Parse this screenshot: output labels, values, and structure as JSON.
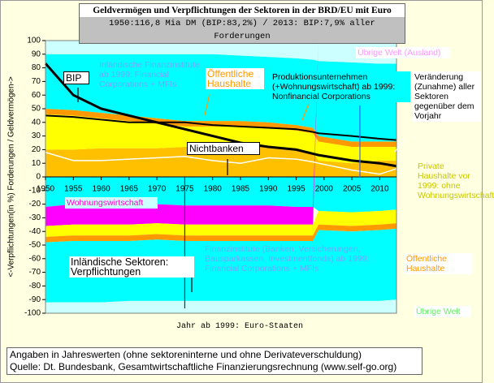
{
  "chart_data": {
    "type": "area",
    "title": "Geldvermögen und Verpflichtungen der Sektoren in der BRD/EU mit Euro",
    "subtitle": "1950:116,8 Mia DM (BIP:83,2%) / 2013: BIP:7,9% aller Forderungen",
    "y_label": "<-Verpflichtungen(in %) Forderungen / Geldvermögen->",
    "x_label": "Jahr ab 1999: Euro-Staaten",
    "notes": [
      "Angaben in Jahreswerten (ohne sektoreninterne und ohne Derivateverschuldung)",
      "Quelle: Dt. Bundesbank, Gesamtwirtschaftliche Finanzierungsrechnung (www.self-go.org)"
    ],
    "annotations": [
      "Inländische Sektoren: Verpflichtungen"
    ],
    "x": [
      1950,
      1955,
      1960,
      1965,
      1970,
      1975,
      1980,
      1985,
      1990,
      1995,
      1998,
      1999,
      2005,
      2010,
      2013
    ],
    "xlim": [
      1950,
      2013
    ],
    "xticks": [
      1950,
      1955,
      1960,
      1965,
      1970,
      1975,
      1980,
      1985,
      1990,
      1995,
      2000,
      2005,
      2010
    ],
    "ylim": [
      -100,
      100
    ],
    "yticks": [
      -100,
      -90,
      -80,
      -70,
      -60,
      -50,
      -40,
      -30,
      -20,
      -10,
      0,
      10,
      20,
      30,
      40,
      50,
      60,
      70,
      80,
      90,
      100
    ],
    "series": [
      {
        "name": "Private Haushalte vor 1999: ohne Wohnungswirtschaft",
        "color": "#ffc000",
        "values": [
          20,
          20,
          21,
          21,
          21,
          22,
          22,
          22,
          22,
          20,
          18,
          12,
          10,
          12,
          12
        ]
      },
      {
        "name": "Produktionsunternehmen (+Wohnungswirtschaft) ab 1999: Nonfinancial Corporations",
        "color": "#ffff00",
        "values": [
          26,
          25,
          22,
          20,
          18,
          15,
          15,
          15,
          14,
          14,
          14,
          14,
          12,
          10,
          10
        ]
      },
      {
        "name": "Öffentliche Haushalte",
        "color": "#ff9900",
        "values": [
          4,
          4,
          4,
          4,
          4,
          4,
          4,
          4,
          4,
          4,
          4,
          4,
          4,
          4,
          4
        ]
      },
      {
        "name": "Inländische Finanzinstitute ab 1999: Financial Corporations + MFIs",
        "color": "#00ffff",
        "values": [
          40,
          41,
          43,
          45,
          47,
          49,
          49,
          48,
          48,
          49,
          50,
          55,
          58,
          57,
          57
        ]
      },
      {
        "name": "Übrige Welt (Ausland)",
        "color": "#ccffff",
        "values": [
          10,
          10,
          10,
          10,
          10,
          10,
          10,
          11,
          12,
          13,
          14,
          15,
          16,
          17,
          17
        ]
      },
      {
        "color": "#00ffff",
        "values": [
          -22,
          -20,
          -20,
          -20,
          -20,
          -21,
          -21,
          -21,
          -21,
          -22,
          -22,
          -25,
          -26,
          -25,
          -24
        ]
      },
      {
        "name": "Wohnungswirtschaft",
        "color": "#ff00ff",
        "values": [
          -14,
          -15,
          -15,
          -15,
          -14,
          -14,
          -14,
          -14,
          -14,
          -13,
          -13,
          0,
          0,
          0,
          0
        ]
      },
      {
        "color": "#ffff00",
        "values": [
          -8,
          -8,
          -8,
          -8,
          -8,
          -8,
          -8,
          -8,
          -8,
          -8,
          -8,
          -10,
          -10,
          -10,
          -10
        ]
      },
      {
        "name": "Öffentliche Haushalte",
        "color": "#ff9900",
        "values": [
          -4,
          -4,
          -4,
          -4,
          -4,
          -4,
          -4,
          -4,
          -4,
          -4,
          -4,
          -4,
          -4,
          -4,
          -4
        ]
      },
      {
        "name": "Finanzinstitute (Banken, Versicherungen, Bausparkassen, Investmentfonds) ab 1999: Financial Corporations + MFIs",
        "color": "#00ffff",
        "values": [
          -44,
          -45,
          -45,
          -44,
          -45,
          -44,
          -44,
          -44,
          -44,
          -44,
          -44,
          -52,
          -51,
          -52,
          -52
        ]
      },
      {
        "name": "Übrige Welt",
        "color": "#ccffff",
        "values": [
          -8,
          -8,
          -8,
          -9,
          -9,
          -9,
          -9,
          -9,
          -9,
          -9,
          -9,
          -9,
          -9,
          -9,
          -10
        ]
      },
      {
        "name": "BIP",
        "type": "line",
        "color": "#000000",
        "values": [
          83.2,
          60,
          50,
          45,
          40,
          35,
          30,
          25,
          22,
          20,
          17,
          16,
          12,
          10,
          7.9
        ]
      },
      {
        "name": "Nichtbanken",
        "type": "line",
        "color": "#000000",
        "values": [
          45,
          44,
          42,
          40,
          40,
          40,
          38,
          37,
          36,
          35,
          33,
          32,
          30,
          28,
          27
        ]
      },
      {
        "name": "Veränderung (Zunahme) aller Sektoren gegenüber dem Vorjahr",
        "type": "line",
        "color": "#ffffff",
        "values": [
          18,
          12,
          12,
          13,
          14,
          15,
          12,
          10,
          14,
          13,
          11,
          10,
          5,
          2,
          6
        ]
      }
    ]
  }
}
